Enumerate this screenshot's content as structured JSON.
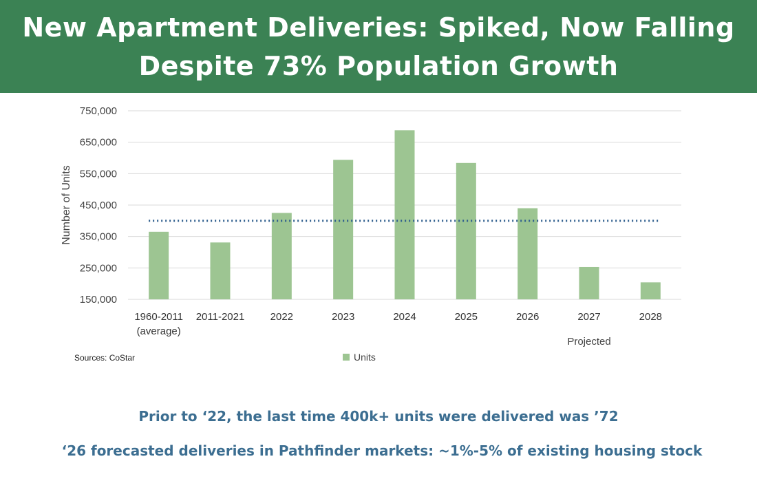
{
  "header": {
    "title_line1": "New Apartment Deliveries: Spiked, Now Falling",
    "title_line2": "Despite 73% Population Growth"
  },
  "chart_data": {
    "type": "bar",
    "categories": [
      "1960-2011 (average)",
      "2011-2021",
      "2022",
      "2023",
      "2024",
      "2025",
      "2026",
      "2027",
      "2028"
    ],
    "category_lines": [
      [
        "1960-2011",
        "(average)"
      ],
      [
        "2011-2021"
      ],
      [
        "2022"
      ],
      [
        "2023"
      ],
      [
        "2024"
      ],
      [
        "2025"
      ],
      [
        "2026"
      ],
      [
        "2027"
      ],
      [
        "2028"
      ]
    ],
    "series": [
      {
        "name": "Units",
        "values": [
          365000,
          331000,
          425000,
          594000,
          688000,
          584000,
          440000,
          253000,
          204000
        ]
      }
    ],
    "reference_line": 400000,
    "ylabel": "Number of Units",
    "ylim": [
      150000,
      750000
    ],
    "yticks": [
      150000,
      250000,
      350000,
      450000,
      550000,
      650000,
      750000
    ],
    "ytick_labels": [
      "150,000",
      "250,000",
      "350,000",
      "450,000",
      "550,000",
      "650,000",
      "750,000"
    ],
    "annotation": "Projected",
    "legend_position": "bottom",
    "grid": true,
    "colors": {
      "bar": "#9dc592",
      "reference_line": "#2e5e8e",
      "grid": "#d9d9d9"
    }
  },
  "footer": {
    "source": "Sources: CoStar",
    "note1": "Prior to ‘22, the last time 400k+ units were delivered was ’72",
    "note2": "‘26 forecasted deliveries in Pathfinder markets: ~1%-5% of existing housing stock"
  }
}
